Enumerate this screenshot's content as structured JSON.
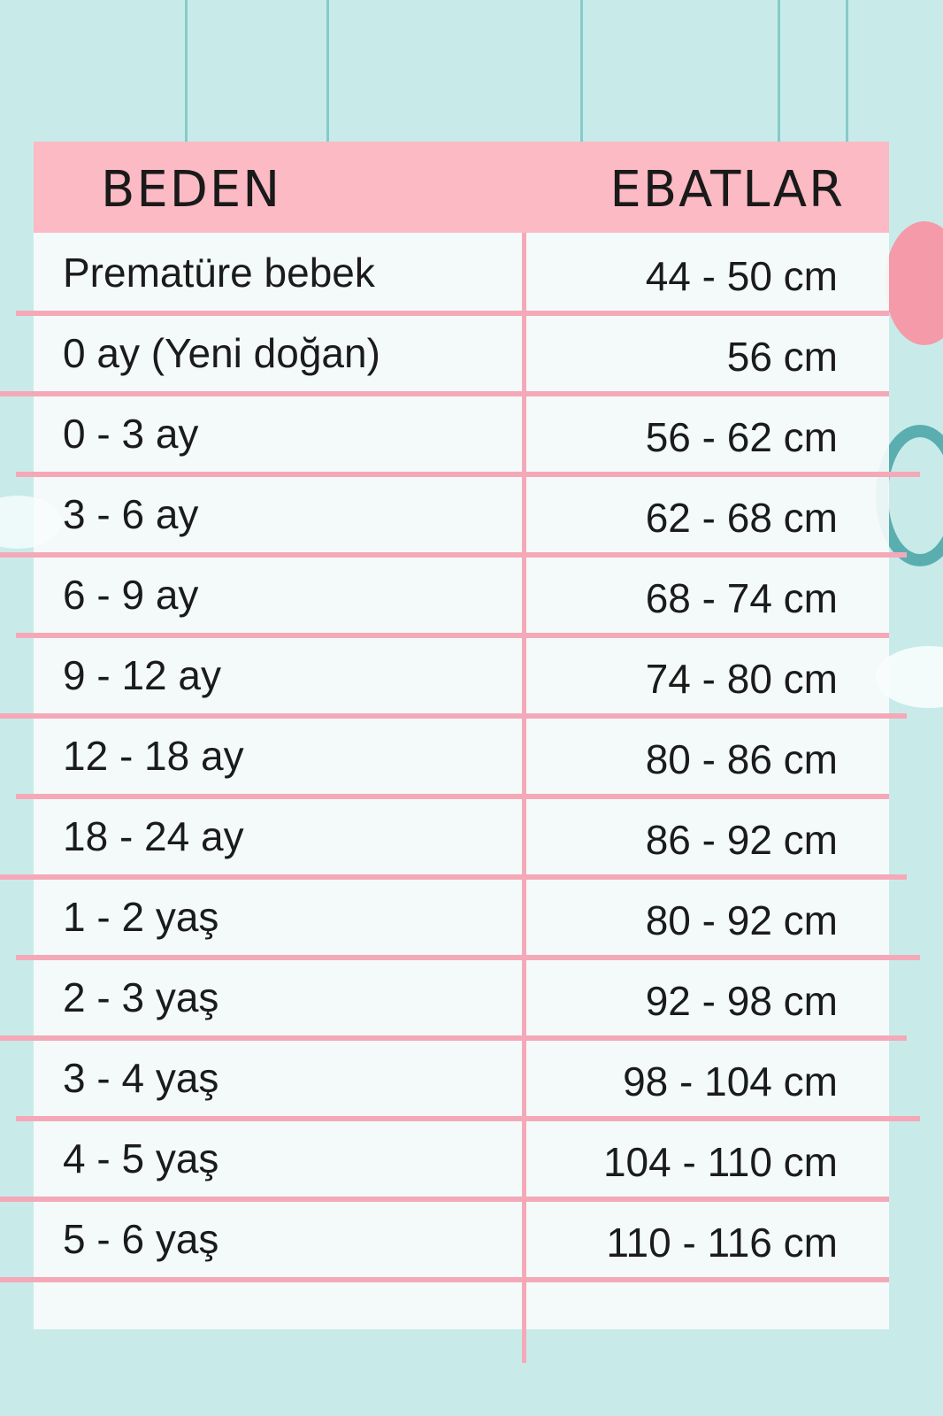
{
  "colors": {
    "background": "#c8ebe9",
    "header": "#fbbac4",
    "lines": "#f5a9b8"
  },
  "table": {
    "headers": [
      "BEDEN",
      "EBATLAR"
    ],
    "rows": [
      {
        "size": "Prematüre bebek",
        "measure": "44 - 50 cm"
      },
      {
        "size": "0 ay (Yeni doğan)",
        "measure": "56 cm"
      },
      {
        "size": "0 - 3 ay",
        "measure": "56 - 62 cm"
      },
      {
        "size": "3 - 6 ay",
        "measure": "62 - 68 cm"
      },
      {
        "size": "6 - 9 ay",
        "measure": "68 - 74 cm"
      },
      {
        "size": "9 - 12 ay",
        "measure": "74 - 80 cm"
      },
      {
        "size": "12 - 18 ay",
        "measure": "80 - 86 cm"
      },
      {
        "size": "18 - 24 ay",
        "measure": "86 - 92 cm"
      },
      {
        "size": "1 - 2 yaş",
        "measure": "80 - 92 cm"
      },
      {
        "size": "2 - 3 yaş",
        "measure": "92 - 98 cm"
      },
      {
        "size": "3 - 4 yaş",
        "measure": "98 - 104 cm"
      },
      {
        "size": "4 - 5 yaş",
        "measure": "104 - 110 cm"
      },
      {
        "size": "5 - 6 yaş",
        "measure": "110 - 116 cm"
      }
    ]
  }
}
